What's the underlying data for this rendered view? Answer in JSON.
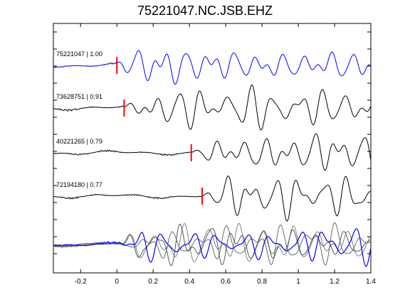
{
  "title": "75221047.NC.JSB.EHZ",
  "chart_data": {
    "type": "line",
    "title": "75221047.NC.JSB.EHZ",
    "xlabel": "",
    "ylabel": "",
    "xlim": [
      -0.35,
      1.4
    ],
    "x_ticks": [
      -0.2,
      0,
      0.2,
      0.4,
      0.6,
      0.8,
      1,
      1.2,
      1.4
    ],
    "x_tick_labels": [
      "-0.2",
      "0",
      "0.2",
      "0.4",
      "0.6",
      "0.8",
      "1",
      "1.2",
      "1.4"
    ],
    "grid": false,
    "traces": [
      {
        "label": "75221047 | 1.00",
        "color": "#0000ff",
        "pick_time": 0.0,
        "pick_color": "#ff0000"
      },
      {
        "label": "73628751 | 0.91",
        "color": "#000000",
        "pick_time": 0.04,
        "pick_color": "#ff0000"
      },
      {
        "label": "40221265 | 0.79",
        "color": "#000000",
        "pick_time": 0.41,
        "pick_color": "#ff0000"
      },
      {
        "label": "72194180 | 0.77",
        "color": "#000000",
        "pick_time": 0.47,
        "pick_color": "#ff0000"
      }
    ],
    "overlay": {
      "label": "",
      "colors": [
        "#0000ff",
        "#555555"
      ]
    }
  }
}
